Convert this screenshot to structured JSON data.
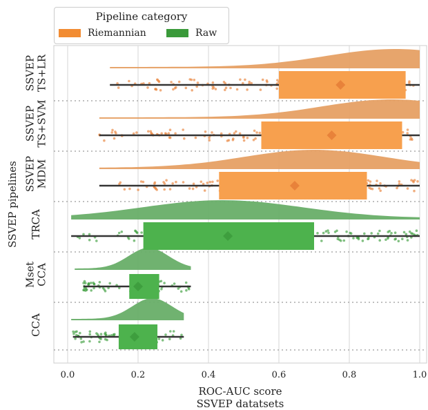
{
  "chart_data": {
    "type": "box",
    "xlabel": "ROC-AUC score",
    "xlabel2": "SSVEP datatsets",
    "ylabel": "SSVEP pipelines",
    "xlim": [
      -0.04,
      1.02
    ],
    "xticks": [
      0.0,
      0.2,
      0.4,
      0.6,
      0.8,
      1.0
    ],
    "xtick_labels": [
      "0.0",
      "0.2",
      "0.4",
      "0.6",
      "0.8",
      "1.0"
    ],
    "grid": true,
    "legend": {
      "title": "Pipeline category",
      "placement": "top-left",
      "entries": [
        {
          "label": "Riemannian",
          "color": "#F28C32"
        },
        {
          "label": "Raw",
          "color": "#3A9A3A"
        }
      ]
    },
    "categories": [
      {
        "label_lines": [
          "SSVEP",
          "TS+LR"
        ],
        "category": "Riemannian",
        "min": 0.12,
        "q1": 0.6,
        "q3": 0.96,
        "max": 1.0,
        "mean": 0.775,
        "range": [
          0.12,
          1.0
        ],
        "peak": 0.93
      },
      {
        "label_lines": [
          "SSVEP",
          "TS+SVM"
        ],
        "category": "Riemannian",
        "min": 0.09,
        "q1": 0.55,
        "q3": 0.95,
        "max": 1.0,
        "mean": 0.75,
        "range": [
          0.09,
          1.0
        ],
        "peak": 0.92
      },
      {
        "label_lines": [
          "SSVEP",
          "MDM"
        ],
        "category": "Riemannian",
        "min": 0.09,
        "q1": 0.43,
        "q3": 0.85,
        "max": 1.0,
        "mean": 0.645,
        "range": [
          0.09,
          1.0
        ],
        "peak": 0.7
      },
      {
        "label_lines": [
          "TRCA"
        ],
        "category": "Raw",
        "min": 0.01,
        "q1": 0.215,
        "q3": 0.7,
        "max": 1.0,
        "mean": 0.455,
        "range": [
          0.01,
          1.0
        ],
        "peak": 0.44
      },
      {
        "label_lines": [
          "Mset",
          "CCA"
        ],
        "category": "Raw",
        "min": 0.045,
        "q1": 0.175,
        "q3": 0.26,
        "max": 0.35,
        "mean": 0.2,
        "range": [
          0.02,
          0.35
        ],
        "peak": 0.23
      },
      {
        "label_lines": [
          "CCA"
        ],
        "category": "Raw",
        "min": 0.015,
        "q1": 0.145,
        "q3": 0.255,
        "max": 0.33,
        "mean": 0.19,
        "range": [
          0.01,
          0.33
        ],
        "peak": 0.24
      }
    ]
  }
}
